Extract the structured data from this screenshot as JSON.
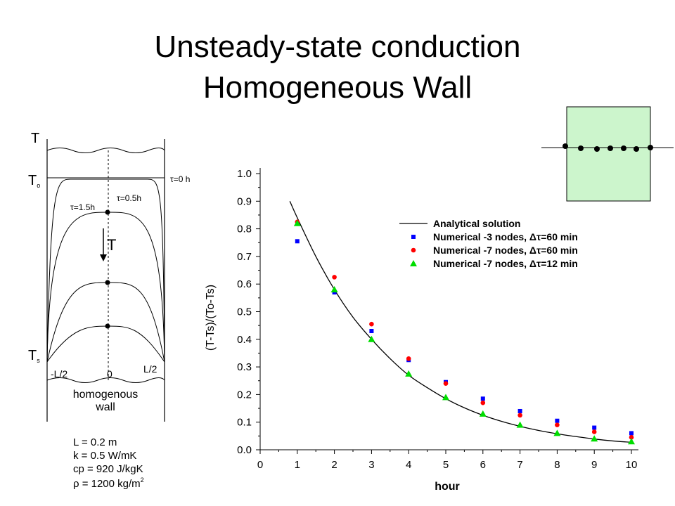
{
  "slide": {
    "title_line1": "Unsteady-state conduction",
    "title_line2": "Homogeneous Wall"
  },
  "diagram": {
    "t_axis_label": "T",
    "t0_label": "T",
    "t0_sub": "o",
    "ts_label": "T",
    "ts_sub": "s",
    "arrow_label": "T",
    "curve_labels": [
      "τ=0 h",
      "τ=0.5h",
      "τ=1.5h"
    ],
    "x_ticks": [
      "-L/2",
      "0",
      "L/2"
    ],
    "wall_label_line1": "homogenous",
    "wall_label_line2": "wall",
    "properties": [
      {
        "text": "L = 0.2 m",
        "sup": ""
      },
      {
        "text": "k = 0.5 W/mK",
        "sup": ""
      },
      {
        "text": "cp = 920 J/kgK",
        "sup": ""
      },
      {
        "text": "ρ = 1200 kg/m",
        "sup": "2"
      }
    ]
  },
  "nodes_inset": {
    "fill_color": "#ccf5cc",
    "node_count": 7
  },
  "chart_data": {
    "type": "scatter",
    "xlabel": "hour",
    "ylabel": "(T-Ts)/(To-Ts)",
    "xlim": [
      0,
      10
    ],
    "ylim": [
      0,
      1.0
    ],
    "x_ticks": [
      "0",
      "1",
      "2",
      "3",
      "4",
      "5",
      "6",
      "7",
      "8",
      "9",
      "10"
    ],
    "y_ticks": [
      "0.0",
      "0.1",
      "0.2",
      "0.3",
      "0.4",
      "0.5",
      "0.6",
      "0.7",
      "0.8",
      "0.9",
      "1.0"
    ],
    "grid": false,
    "legend_position": "top-right",
    "series": [
      {
        "name": "Analytical solution",
        "type": "line",
        "color": "#000000",
        "x": [
          0.8,
          1,
          1.5,
          2,
          2.5,
          3,
          3.5,
          4,
          4.5,
          5,
          5.5,
          6,
          6.5,
          7,
          7.5,
          8,
          8.5,
          9,
          9.5,
          10
        ],
        "values": [
          0.9,
          0.84,
          0.7,
          0.58,
          0.48,
          0.4,
          0.33,
          0.27,
          0.225,
          0.185,
          0.152,
          0.125,
          0.103,
          0.085,
          0.07,
          0.058,
          0.048,
          0.039,
          0.032,
          0.027
        ]
      },
      {
        "name": "Numerical -3 nodes, Δτ=60 min",
        "type": "scatter",
        "marker": "square",
        "color": "#0000ff",
        "x": [
          1,
          2,
          3,
          4,
          5,
          6,
          7,
          8,
          9,
          10
        ],
        "values": [
          0.755,
          0.57,
          0.43,
          0.325,
          0.245,
          0.185,
          0.14,
          0.105,
          0.08,
          0.06
        ]
      },
      {
        "name": "Numerical -7 nodes, Δτ=60 min",
        "type": "scatter",
        "marker": "circle",
        "color": "#ff0000",
        "x": [
          1,
          2,
          3,
          4,
          5,
          6,
          7,
          8,
          9,
          10
        ],
        "values": [
          0.825,
          0.625,
          0.455,
          0.33,
          0.24,
          0.17,
          0.125,
          0.09,
          0.065,
          0.045
        ]
      },
      {
        "name": "Numerical -7 nodes, Δτ=12 min",
        "type": "scatter",
        "marker": "triangle",
        "color": "#00dd00",
        "x": [
          1,
          2,
          3,
          4,
          5,
          6,
          7,
          8,
          9,
          10
        ],
        "values": [
          0.82,
          0.58,
          0.4,
          0.275,
          0.19,
          0.13,
          0.09,
          0.06,
          0.04,
          0.03
        ]
      }
    ]
  }
}
